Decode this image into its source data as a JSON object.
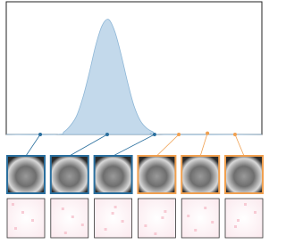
{
  "chart_data": {
    "type": "area",
    "x": [
      0,
      20,
      22.5,
      25,
      27.5,
      30,
      32.5,
      35,
      37.5,
      40,
      42.5,
      45,
      47.5,
      50,
      52.5,
      55,
      57.5,
      60,
      100
    ],
    "values": [
      0,
      0,
      0.02,
      0.07,
      0.15,
      0.3,
      0.5,
      0.72,
      0.88,
      0.93,
      0.83,
      0.64,
      0.42,
      0.23,
      0.11,
      0.05,
      0.02,
      0,
      0
    ],
    "color": "#c3d9eb",
    "line_color": "#8db6d6",
    "xlim": [
      0,
      100
    ],
    "ylim": [
      0,
      1
    ],
    "points": [
      {
        "x": 13.3,
        "y": 0,
        "color": "#2a6f9e"
      },
      {
        "x": 39.5,
        "y": 0,
        "color": "#2a6f9e"
      },
      {
        "x": 58,
        "y": 0,
        "color": "#2a6f9e"
      },
      {
        "x": 67.5,
        "y": 0,
        "color": "#f0a050"
      },
      {
        "x": 78.7,
        "y": 0.01,
        "color": "#f0a050"
      },
      {
        "x": 89.5,
        "y": 0,
        "color": "#f0a050"
      }
    ]
  }
}
